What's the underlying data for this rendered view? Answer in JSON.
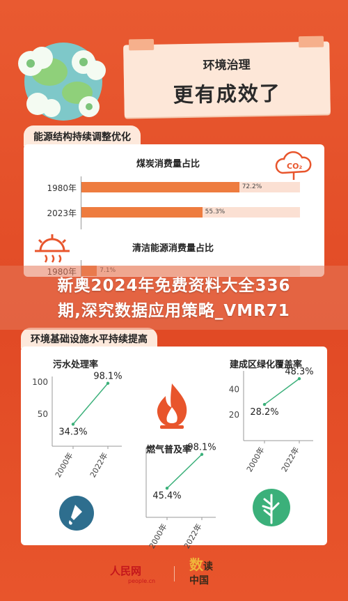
{
  "header": {
    "subtitle": "环境治理",
    "title": "更有成效了"
  },
  "panel1": {
    "tag": "能源结构持续调整优化"
  },
  "panel2": {
    "tag": "环境基础设施水平持续提高"
  },
  "watermark": {
    "line1": "新奥2024年免费资料大全336",
    "line2": "期,深究数据应用策略_VMR71"
  },
  "footer": {
    "logo1": "人民网",
    "logo1_sub": "people.cn",
    "logo2_a": "数",
    "logo2_b": "读",
    "logo2_c": "中国"
  },
  "colors": {
    "background": "#e8552c",
    "bar": "#ee7c3f",
    "bar_track": "#fbe0d3",
    "line": "#3bb07a",
    "panel": "#ffffff"
  },
  "icons": [
    "earth-illustration-icon",
    "co2-cloud-icon",
    "sun-heat-icon",
    "flame-icon",
    "water-drop-icon",
    "tree-icon"
  ],
  "chart_data": [
    {
      "type": "bar",
      "title": "煤炭消费量占比",
      "categories": [
        "1980年",
        "2023年"
      ],
      "values": [
        72.2,
        55.3
      ],
      "value_labels": [
        "72.2%",
        "55.3%"
      ],
      "ylim": [
        0,
        100
      ]
    },
    {
      "type": "bar",
      "title": "清洁能源消费量占比",
      "categories": [
        "1980年"
      ],
      "values": [
        7.1
      ],
      "value_labels": [
        "7.1%"
      ],
      "ylim": [
        0,
        100
      ]
    },
    {
      "type": "line",
      "title": "污水处理率",
      "x": [
        "2000年",
        "2022年"
      ],
      "values": [
        34.3,
        98.1
      ],
      "value_labels": [
        "34.3%",
        "98.1%"
      ],
      "yticks": [
        50,
        100
      ],
      "ylim": [
        0,
        100
      ]
    },
    {
      "type": "line",
      "title": "建成区绿化覆盖率",
      "x": [
        "2000年",
        "2022年"
      ],
      "values": [
        28.2,
        48.3
      ],
      "value_labels": [
        "28.2%",
        "48.3%"
      ],
      "yticks": [
        20,
        40
      ],
      "ylim": [
        0,
        50
      ]
    },
    {
      "type": "line",
      "title": "燃气普及率",
      "x": [
        "2000年",
        "2022年"
      ],
      "values": [
        45.4,
        98.1
      ],
      "value_labels": [
        "45.4%",
        "98.1%"
      ],
      "yticks": [],
      "ylim": [
        0,
        100
      ]
    }
  ]
}
